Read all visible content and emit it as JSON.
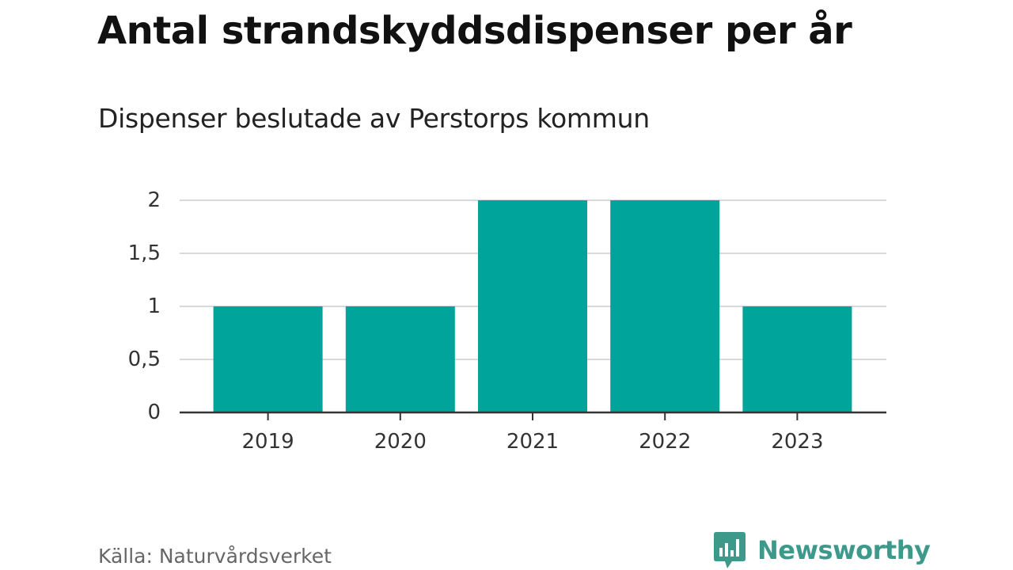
{
  "chart_data": {
    "type": "bar",
    "title": "Antal strandskyddsdispenser per år",
    "subtitle": "Dispenser beslutade av Perstorps kommun",
    "categories": [
      "2019",
      "2020",
      "2021",
      "2022",
      "2023"
    ],
    "values": [
      1,
      1,
      2,
      2,
      1
    ],
    "y_ticks": [
      0,
      0.5,
      1,
      1.5,
      2
    ],
    "y_tick_labels": [
      "0",
      "0,5",
      "1",
      "1,5",
      "2"
    ],
    "ylim": [
      0,
      2
    ],
    "grid": true,
    "bar_color": "#00a49a",
    "source": "Källa: Naturvårdsverket"
  },
  "brand": {
    "name": "Newsworthy",
    "color": "#3d9a8b",
    "icon": "newsworthy-logo-icon"
  }
}
